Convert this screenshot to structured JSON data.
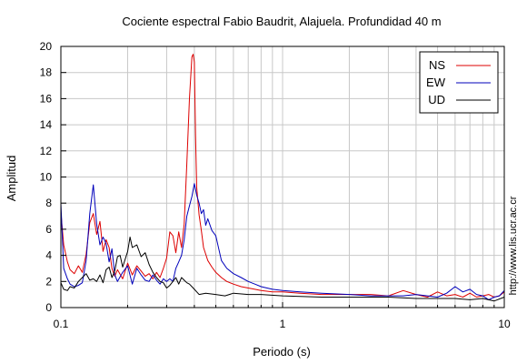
{
  "chart_data": {
    "type": "line",
    "title": "Cociente espectral Fabio Baudrit, Alajuela. Profundidad 40 m",
    "xlabel": "Periodo (s)",
    "ylabel": "Amplitud",
    "xscale": "log",
    "xlim": [
      0.1,
      10
    ],
    "ylim": [
      0,
      20
    ],
    "xticks": [
      0.1,
      1,
      10
    ],
    "xtick_labels": [
      "0.1",
      "1",
      "10"
    ],
    "yticks": [
      0,
      2,
      4,
      6,
      8,
      10,
      12,
      14,
      16,
      18,
      20
    ],
    "ytick_labels": [
      "0",
      "2",
      "4",
      "6",
      "8",
      "10",
      "12",
      "14",
      "16",
      "18",
      "20"
    ],
    "grid": true,
    "legend_position": "top-right",
    "side_text": "http://www.lis.ucr.ac.cr",
    "series": [
      {
        "name": "NS",
        "color": "#dd0000",
        "x": [
          0.1,
          0.103,
          0.107,
          0.11,
          0.115,
          0.12,
          0.125,
          0.13,
          0.135,
          0.14,
          0.145,
          0.15,
          0.155,
          0.16,
          0.165,
          0.17,
          0.175,
          0.18,
          0.19,
          0.2,
          0.21,
          0.22,
          0.23,
          0.24,
          0.25,
          0.26,
          0.27,
          0.28,
          0.29,
          0.3,
          0.31,
          0.32,
          0.33,
          0.34,
          0.35,
          0.36,
          0.37,
          0.38,
          0.39,
          0.395,
          0.4,
          0.405,
          0.41,
          0.42,
          0.43,
          0.44,
          0.46,
          0.48,
          0.5,
          0.53,
          0.56,
          0.6,
          0.65,
          0.7,
          0.75,
          0.8,
          0.9,
          1.0,
          1.2,
          1.5,
          2.0,
          2.5,
          3.0,
          3.5,
          4.0,
          4.5,
          5.0,
          5.5,
          6.0,
          6.5,
          7.0,
          7.5,
          8.0,
          8.5,
          9.0,
          9.5,
          10.0
        ],
        "y": [
          7.3,
          4.8,
          3.5,
          2.9,
          2.6,
          3.2,
          2.7,
          4.1,
          6.5,
          7.2,
          5.6,
          6.6,
          4.3,
          5.2,
          4.6,
          3.0,
          2.4,
          2.9,
          2.2,
          3.4,
          2.5,
          3.2,
          2.8,
          2.4,
          2.6,
          2.2,
          2.7,
          2.3,
          3.0,
          3.8,
          5.8,
          5.5,
          4.2,
          5.8,
          4.6,
          6.4,
          11.0,
          16.0,
          19.2,
          19.4,
          18.8,
          13.2,
          9.2,
          7.1,
          5.9,
          4.6,
          3.6,
          3.1,
          2.7,
          2.3,
          2.0,
          1.8,
          1.6,
          1.5,
          1.4,
          1.3,
          1.2,
          1.2,
          1.1,
          1.0,
          1.0,
          1.0,
          0.9,
          1.3,
          1.0,
          0.8,
          1.2,
          0.9,
          1.0,
          0.8,
          1.1,
          0.8,
          0.9,
          1.0,
          0.8,
          0.9,
          1.2
        ]
      },
      {
        "name": "EW",
        "color": "#0000bb",
        "x": [
          0.1,
          0.103,
          0.107,
          0.11,
          0.115,
          0.12,
          0.125,
          0.13,
          0.135,
          0.14,
          0.145,
          0.15,
          0.155,
          0.16,
          0.165,
          0.17,
          0.175,
          0.18,
          0.19,
          0.2,
          0.21,
          0.22,
          0.23,
          0.24,
          0.25,
          0.26,
          0.27,
          0.28,
          0.29,
          0.3,
          0.31,
          0.32,
          0.33,
          0.34,
          0.35,
          0.36,
          0.37,
          0.38,
          0.39,
          0.4,
          0.41,
          0.42,
          0.43,
          0.44,
          0.45,
          0.46,
          0.48,
          0.5,
          0.53,
          0.56,
          0.6,
          0.65,
          0.7,
          0.75,
          0.8,
          0.9,
          1.0,
          1.2,
          1.5,
          2.0,
          2.5,
          3.0,
          3.5,
          4.0,
          4.5,
          5.0,
          5.5,
          6.0,
          6.5,
          7.0,
          7.5,
          8.0,
          8.5,
          9.0,
          9.5,
          10.0
        ],
        "y": [
          8.0,
          3.0,
          2.2,
          1.8,
          1.6,
          1.7,
          1.9,
          3.6,
          7.2,
          9.4,
          6.4,
          4.8,
          5.4,
          4.9,
          3.5,
          4.5,
          2.5,
          2.0,
          2.7,
          3.2,
          1.8,
          3.0,
          2.5,
          2.1,
          2.0,
          2.5,
          2.1,
          1.8,
          2.2,
          2.0,
          2.2,
          2.0,
          3.0,
          3.5,
          4.0,
          5.2,
          7.0,
          7.8,
          8.5,
          9.5,
          8.6,
          8.0,
          7.2,
          7.5,
          6.3,
          6.8,
          5.9,
          5.5,
          3.6,
          3.0,
          2.6,
          2.3,
          2.0,
          1.8,
          1.6,
          1.4,
          1.3,
          1.2,
          1.1,
          1.0,
          0.9,
          0.9,
          0.9,
          1.0,
          0.9,
          0.8,
          1.1,
          1.6,
          1.2,
          1.4,
          1.0,
          0.9,
          0.6,
          0.8,
          0.9,
          1.3
        ]
      },
      {
        "name": "UD",
        "color": "#000000",
        "x": [
          0.1,
          0.103,
          0.107,
          0.11,
          0.115,
          0.12,
          0.125,
          0.13,
          0.135,
          0.14,
          0.145,
          0.15,
          0.155,
          0.16,
          0.165,
          0.17,
          0.175,
          0.18,
          0.185,
          0.19,
          0.2,
          0.205,
          0.21,
          0.22,
          0.23,
          0.24,
          0.25,
          0.26,
          0.27,
          0.28,
          0.29,
          0.3,
          0.31,
          0.32,
          0.33,
          0.34,
          0.35,
          0.36,
          0.37,
          0.38,
          0.39,
          0.4,
          0.42,
          0.45,
          0.5,
          0.55,
          0.6,
          0.7,
          0.8,
          1.0,
          1.5,
          2.0,
          3.0,
          4.0,
          5.0,
          6.0,
          7.0,
          8.0,
          9.0,
          10.0
        ],
        "y": [
          1.9,
          1.4,
          1.3,
          1.6,
          1.5,
          2.0,
          2.3,
          2.6,
          2.1,
          2.2,
          2.0,
          2.5,
          1.9,
          2.9,
          3.1,
          2.3,
          2.8,
          3.9,
          4.0,
          3.1,
          4.3,
          5.4,
          4.6,
          4.8,
          3.9,
          4.2,
          3.3,
          2.7,
          2.3,
          2.0,
          1.9,
          1.5,
          1.7,
          2.0,
          2.3,
          1.8,
          2.3,
          2.1,
          1.9,
          1.8,
          1.6,
          1.4,
          1.0,
          1.1,
          1.0,
          0.9,
          1.1,
          1.0,
          1.0,
          0.9,
          0.8,
          0.8,
          0.8,
          0.7,
          0.7,
          0.7,
          0.6,
          0.7,
          0.5,
          0.8
        ]
      }
    ]
  }
}
